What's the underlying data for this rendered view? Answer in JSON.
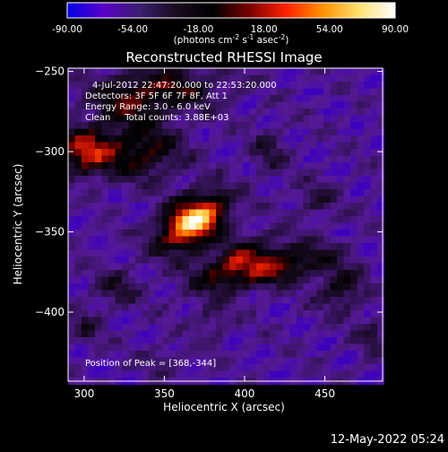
{
  "colorbar": {
    "ticks": [
      "-90.00",
      "-54.00",
      "-18.00",
      "18.00",
      "54.00",
      "90.00"
    ],
    "tick_values": [
      -90,
      -54,
      -18,
      18,
      54,
      90
    ],
    "range": [
      -90,
      90
    ],
    "label_main": "(photons cm",
    "label_exp1": "-2",
    "label_mid": " s",
    "label_exp2": "-1",
    "label_end": " asec",
    "label_exp3": "-2",
    "label_close": ")",
    "colors": [
      "#0000e6",
      "#5a00c8",
      "#3a1f6e",
      "#1a0b20",
      "#000000",
      "#7a0000",
      "#ff2000",
      "#ff9000",
      "#ffe070",
      "#ffffff"
    ]
  },
  "chart_data": {
    "type": "heatmap",
    "title": "Reconstructed RHESSI Image",
    "xlabel": "Heliocentric X (arcsec)",
    "ylabel": "Heliocentric Y (arcsec)",
    "xlim": [
      290,
      486
    ],
    "ylim": [
      -443,
      -248
    ],
    "x_ticks": [
      300,
      350,
      400,
      450
    ],
    "y_ticks": [
      -250,
      -300,
      -350,
      -400
    ],
    "x_tick_labels": [
      "300",
      "350",
      "400",
      "450"
    ],
    "y_tick_labels": [
      "−250",
      "−300",
      "−350",
      "−400"
    ],
    "peak": [
      368,
      -344
    ],
    "annotations": {
      "time": "4-Jul-2012 22:47:20.000 to 22:53:20.000",
      "detectors": "Detectors: 3F 5F 6F 7F 8F, Att 1",
      "energy": "Energy Range: 3.0 - 6.0 keV",
      "clean": "Clean     Total counts: 3.88E+03",
      "peak_text": "Position of Peak = [368,-344]"
    }
  },
  "footer": {
    "timestamp": "12-May-2022 05:24"
  }
}
